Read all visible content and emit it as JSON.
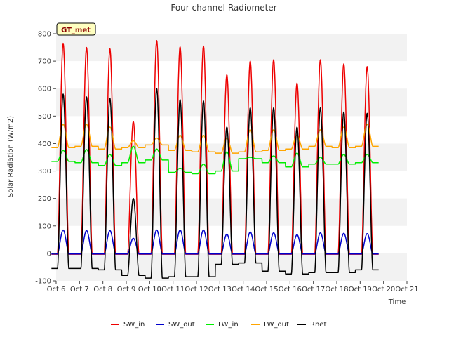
{
  "chart_data": {
    "type": "line",
    "title": "Four channel Radiometer",
    "xlabel": "Time",
    "ylabel": "Solar Radiation (W/m2)",
    "site_badge": "GT_met",
    "xlim": [
      6,
      21
    ],
    "ylim": [
      -100,
      800
    ],
    "x_ticks": [
      6,
      7,
      8,
      9,
      10,
      11,
      12,
      13,
      14,
      15,
      16,
      17,
      18,
      19,
      20,
      21
    ],
    "x_tick_labels": [
      "Oct 6",
      "Oct 7",
      "Oct 8",
      "Oct 9",
      "Oct 10",
      "Oct 11",
      "Oct 12",
      "Oct 13",
      "Oct 14",
      "Oct 15",
      "Oct 16",
      "Oct 17",
      "Oct 18",
      "Oct 19",
      "Oct 20",
      "Oct 21"
    ],
    "y_ticks": [
      -100,
      0,
      100,
      200,
      300,
      400,
      500,
      600,
      700,
      800
    ],
    "y_tick_labels": [
      "-100",
      "0",
      "100",
      "200",
      "300",
      "400",
      "500",
      "600",
      "700",
      "800"
    ],
    "grid": "horizontal bands",
    "legend_position": "bottom",
    "days": [
      6.3,
      7.3,
      8.3,
      9.3,
      10.3,
      11.3,
      12.3,
      13.3,
      14.3,
      15.3,
      16.3,
      17.3,
      18.3,
      19.3
    ],
    "series": [
      {
        "name": "SW_in",
        "color": "#ee0000",
        "peaks": [
          765,
          750,
          745,
          480,
          775,
          752,
          755,
          650,
          700,
          705,
          620,
          705,
          690,
          680
        ],
        "night": [
          -3,
          -3,
          -3,
          -3,
          -3,
          -3,
          -3,
          -3,
          -3,
          -3,
          -3,
          -3,
          -3,
          -3
        ]
      },
      {
        "name": "SW_out",
        "color": "#0000cc",
        "peaks": [
          85,
          83,
          83,
          55,
          85,
          85,
          85,
          70,
          78,
          75,
          68,
          75,
          73,
          72
        ],
        "night": [
          -2,
          -2,
          -2,
          -2,
          -2,
          -2,
          -2,
          -2,
          -2,
          -2,
          -2,
          -2,
          -2,
          -2
        ]
      },
      {
        "name": "LW_in",
        "color": "#00ee00",
        "peaks": [
          375,
          378,
          360,
          390,
          380,
          310,
          325,
          370,
          350,
          355,
          365,
          350,
          360,
          360
        ],
        "night": [
          335,
          330,
          320,
          330,
          340,
          295,
          290,
          300,
          345,
          330,
          315,
          325,
          325,
          330
        ]
      },
      {
        "name": "LW_out",
        "color": "#ffa500",
        "peaks": [
          470,
          470,
          460,
          410,
          420,
          430,
          430,
          420,
          450,
          450,
          430,
          450,
          460,
          470
        ],
        "night": [
          385,
          390,
          380,
          385,
          395,
          375,
          370,
          365,
          370,
          375,
          380,
          390,
          385,
          390
        ]
      },
      {
        "name": "Rnet",
        "color": "#000000",
        "peaks": [
          580,
          570,
          565,
          200,
          600,
          560,
          555,
          460,
          530,
          530,
          460,
          530,
          515,
          510
        ],
        "night": [
          -55,
          -55,
          -60,
          -80,
          -90,
          -85,
          -85,
          -40,
          -35,
          -65,
          -75,
          -70,
          -70,
          -60
        ]
      }
    ]
  }
}
